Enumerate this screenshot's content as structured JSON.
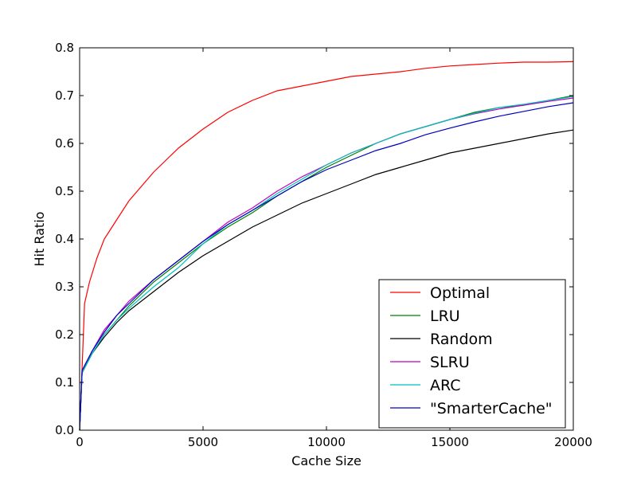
{
  "chart_data": {
    "type": "line",
    "title": "",
    "xlabel": "Cache Size",
    "ylabel": "Hit Ratio",
    "xlim": [
      0,
      20000
    ],
    "ylim": [
      0,
      0.8
    ],
    "xticks": [
      0,
      5000,
      10000,
      15000,
      20000
    ],
    "yticks": [
      0.0,
      0.1,
      0.2,
      0.3,
      0.4,
      0.5,
      0.6,
      0.7,
      0.8
    ],
    "grid": false,
    "legend_position": "lower-right",
    "series": [
      {
        "name": "Optimal",
        "color": "#ff0000",
        "points": [
          [
            0,
            0.0
          ],
          [
            100,
            0.13
          ],
          [
            200,
            0.265
          ],
          [
            400,
            0.31
          ],
          [
            700,
            0.36
          ],
          [
            1000,
            0.4
          ],
          [
            1500,
            0.44
          ],
          [
            2000,
            0.48
          ],
          [
            2500,
            0.51
          ],
          [
            3000,
            0.54
          ],
          [
            3500,
            0.565
          ],
          [
            4000,
            0.59
          ],
          [
            5000,
            0.63
          ],
          [
            6000,
            0.665
          ],
          [
            7000,
            0.69
          ],
          [
            8000,
            0.71
          ],
          [
            9000,
            0.72
          ],
          [
            10000,
            0.73
          ],
          [
            11000,
            0.74
          ],
          [
            12000,
            0.745
          ],
          [
            13000,
            0.75
          ],
          [
            14000,
            0.757
          ],
          [
            15000,
            0.762
          ],
          [
            16000,
            0.765
          ],
          [
            17000,
            0.768
          ],
          [
            18000,
            0.77
          ],
          [
            19000,
            0.77
          ],
          [
            20000,
            0.771
          ]
        ]
      },
      {
        "name": "LRU",
        "color": "#008000",
        "points": [
          [
            0,
            0.0
          ],
          [
            100,
            0.12
          ],
          [
            300,
            0.14
          ],
          [
            500,
            0.16
          ],
          [
            1000,
            0.2
          ],
          [
            1500,
            0.23
          ],
          [
            2000,
            0.26
          ],
          [
            3000,
            0.31
          ],
          [
            4000,
            0.35
          ],
          [
            5000,
            0.39
          ],
          [
            6000,
            0.425
          ],
          [
            7000,
            0.455
          ],
          [
            8000,
            0.49
          ],
          [
            9000,
            0.52
          ],
          [
            10000,
            0.55
          ],
          [
            11000,
            0.575
          ],
          [
            12000,
            0.6
          ],
          [
            13000,
            0.62
          ],
          [
            14000,
            0.635
          ],
          [
            15000,
            0.65
          ],
          [
            16000,
            0.665
          ],
          [
            17000,
            0.675
          ],
          [
            18000,
            0.68
          ],
          [
            19000,
            0.69
          ],
          [
            20000,
            0.7
          ]
        ]
      },
      {
        "name": "Random",
        "color": "#000000",
        "points": [
          [
            0,
            0.0
          ],
          [
            100,
            0.12
          ],
          [
            300,
            0.14
          ],
          [
            500,
            0.16
          ],
          [
            1000,
            0.195
          ],
          [
            1500,
            0.225
          ],
          [
            2000,
            0.25
          ],
          [
            3000,
            0.29
          ],
          [
            4000,
            0.33
          ],
          [
            5000,
            0.365
          ],
          [
            6000,
            0.395
          ],
          [
            7000,
            0.425
          ],
          [
            8000,
            0.45
          ],
          [
            9000,
            0.475
          ],
          [
            10000,
            0.495
          ],
          [
            11000,
            0.515
          ],
          [
            12000,
            0.535
          ],
          [
            13000,
            0.55
          ],
          [
            14000,
            0.565
          ],
          [
            15000,
            0.58
          ],
          [
            16000,
            0.59
          ],
          [
            17000,
            0.6
          ],
          [
            18000,
            0.61
          ],
          [
            19000,
            0.62
          ],
          [
            20000,
            0.628
          ]
        ]
      },
      {
        "name": "SLRU",
        "color": "#bf00bf",
        "points": [
          [
            0,
            0.0
          ],
          [
            100,
            0.125
          ],
          [
            300,
            0.145
          ],
          [
            500,
            0.165
          ],
          [
            1000,
            0.21
          ],
          [
            1500,
            0.24
          ],
          [
            2000,
            0.27
          ],
          [
            3000,
            0.315
          ],
          [
            4000,
            0.355
          ],
          [
            5000,
            0.395
          ],
          [
            6000,
            0.435
          ],
          [
            7000,
            0.465
          ],
          [
            8000,
            0.5
          ],
          [
            9000,
            0.53
          ],
          [
            10000,
            0.555
          ],
          [
            11000,
            0.58
          ],
          [
            12000,
            0.6
          ],
          [
            13000,
            0.62
          ],
          [
            14000,
            0.635
          ],
          [
            15000,
            0.65
          ],
          [
            16000,
            0.662
          ],
          [
            17000,
            0.672
          ],
          [
            18000,
            0.68
          ],
          [
            19000,
            0.688
          ],
          [
            20000,
            0.695
          ]
        ]
      },
      {
        "name": "ARC",
        "color": "#00bfbf",
        "points": [
          [
            0,
            0.0
          ],
          [
            100,
            0.12
          ],
          [
            300,
            0.14
          ],
          [
            500,
            0.16
          ],
          [
            1000,
            0.2
          ],
          [
            1500,
            0.23
          ],
          [
            2000,
            0.255
          ],
          [
            3000,
            0.3
          ],
          [
            4000,
            0.34
          ],
          [
            5000,
            0.39
          ],
          [
            6000,
            0.43
          ],
          [
            7000,
            0.46
          ],
          [
            8000,
            0.495
          ],
          [
            9000,
            0.525
          ],
          [
            10000,
            0.555
          ],
          [
            11000,
            0.58
          ],
          [
            12000,
            0.6
          ],
          [
            13000,
            0.62
          ],
          [
            14000,
            0.635
          ],
          [
            15000,
            0.65
          ],
          [
            16000,
            0.663
          ],
          [
            17000,
            0.675
          ],
          [
            18000,
            0.682
          ],
          [
            19000,
            0.69
          ],
          [
            20000,
            0.698
          ]
        ]
      },
      {
        "name": "\"SmarterCache\"",
        "color": "#0000bf",
        "points": [
          [
            0,
            0.0
          ],
          [
            100,
            0.125
          ],
          [
            300,
            0.145
          ],
          [
            500,
            0.165
          ],
          [
            1000,
            0.205
          ],
          [
            1500,
            0.24
          ],
          [
            2000,
            0.265
          ],
          [
            3000,
            0.315
          ],
          [
            4000,
            0.355
          ],
          [
            5000,
            0.395
          ],
          [
            6000,
            0.43
          ],
          [
            7000,
            0.46
          ],
          [
            8000,
            0.49
          ],
          [
            9000,
            0.52
          ],
          [
            10000,
            0.545
          ],
          [
            11000,
            0.565
          ],
          [
            12000,
            0.585
          ],
          [
            13000,
            0.6
          ],
          [
            14000,
            0.618
          ],
          [
            15000,
            0.632
          ],
          [
            16000,
            0.645
          ],
          [
            17000,
            0.657
          ],
          [
            18000,
            0.667
          ],
          [
            19000,
            0.677
          ],
          [
            20000,
            0.685
          ]
        ]
      }
    ]
  }
}
